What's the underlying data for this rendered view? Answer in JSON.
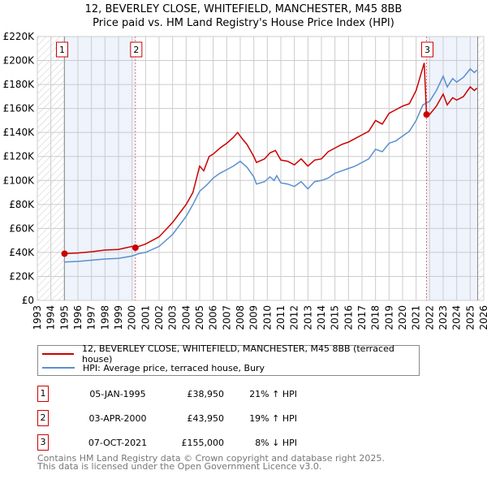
{
  "title": "12, BEVERLEY CLOSE, WHITEFIELD, MANCHESTER, M45 8BB",
  "subtitle": "Price paid vs. HM Land Registry's House Price Index (HPI)",
  "chart_data": {
    "type": "line",
    "xlim": [
      1993,
      2026
    ],
    "ylim": [
      0,
      220000
    ],
    "x_ticks": [
      "1993",
      "1994",
      "1995",
      "1996",
      "1997",
      "1998",
      "1999",
      "2000",
      "2001",
      "2002",
      "2003",
      "2004",
      "2005",
      "2006",
      "2007",
      "2008",
      "2009",
      "2010",
      "2011",
      "2012",
      "2013",
      "2014",
      "2015",
      "2016",
      "2017",
      "2018",
      "2019",
      "2020",
      "2021",
      "2022",
      "2023",
      "2024",
      "2025",
      "2026"
    ],
    "y_ticks": [
      {
        "v": 0,
        "l": "£0"
      },
      {
        "v": 20000,
        "l": "£20K"
      },
      {
        "v": 40000,
        "l": "£40K"
      },
      {
        "v": 60000,
        "l": "£60K"
      },
      {
        "v": 80000,
        "l": "£80K"
      },
      {
        "v": 100000,
        "l": "£100K"
      },
      {
        "v": 120000,
        "l": "£120K"
      },
      {
        "v": 140000,
        "l": "£140K"
      },
      {
        "v": 160000,
        "l": "£160K"
      },
      {
        "v": 180000,
        "l": "£180K"
      },
      {
        "v": 200000,
        "l": "£200K"
      },
      {
        "v": 220000,
        "l": "£220K"
      }
    ],
    "grid": true,
    "series": [
      {
        "name": "12, BEVERLEY CLOSE, WHITEFIELD, MANCHESTER, M45 8BB (terraced house)",
        "color": "#cc0000",
        "x": [
          1995,
          1996,
          1997,
          1998,
          1999,
          2000,
          2000.25,
          2001,
          2002,
          2003,
          2004,
          2004.5,
          2005,
          2005.3,
          2005.7,
          2006,
          2006.5,
          2007,
          2007.5,
          2007.8,
          2008.2,
          2008.5,
          2009,
          2009.2,
          2009.8,
          2010.2,
          2010.6,
          2011,
          2011.5,
          2012,
          2012.5,
          2013,
          2013.5,
          2014,
          2014.5,
          2015,
          2015.5,
          2016,
          2016.5,
          2017,
          2017.5,
          2018,
          2018.5,
          2019,
          2019.5,
          2020,
          2020.5,
          2021,
          2021.6,
          2021.77,
          2022,
          2022.5,
          2023,
          2023.3,
          2023.7,
          2024,
          2024.5,
          2025,
          2025.3,
          2025.5
        ],
        "y": [
          39000,
          39500,
          40500,
          42000,
          42500,
          45000,
          44000,
          47000,
          53000,
          65000,
          80000,
          90000,
          112000,
          108000,
          120000,
          122000,
          127000,
          131000,
          136000,
          140000,
          134000,
          130000,
          120000,
          115000,
          118000,
          123000,
          125000,
          117000,
          116000,
          113000,
          118000,
          112000,
          117000,
          118000,
          124000,
          127000,
          130000,
          132000,
          135000,
          138000,
          141000,
          150000,
          147000,
          156000,
          159000,
          162000,
          164000,
          175000,
          198000,
          155000,
          155000,
          162000,
          172000,
          163000,
          169000,
          167000,
          170000,
          178000,
          175000,
          177000
        ]
      },
      {
        "name": "HPI: Average price, terraced house, Bury",
        "color": "#5b8fd0",
        "x": [
          1995,
          1996,
          1997,
          1998,
          1999,
          2000,
          2000.5,
          2001,
          2002,
          2003,
          2004,
          2004.5,
          2005,
          2005.5,
          2006,
          2006.5,
          2007,
          2007.5,
          2008,
          2008.5,
          2009,
          2009.2,
          2009.8,
          2010.2,
          2010.5,
          2010.7,
          2011,
          2011.5,
          2012,
          2012.5,
          2013,
          2013.5,
          2014,
          2014.5,
          2015,
          2015.5,
          2016,
          2016.5,
          2017,
          2017.5,
          2018,
          2018.5,
          2019,
          2019.5,
          2020,
          2020.5,
          2021,
          2021.5,
          2022,
          2022.5,
          2023,
          2023.3,
          2023.7,
          2024,
          2024.5,
          2025,
          2025.3,
          2025.5
        ],
        "y": [
          32000,
          32500,
          33500,
          34500,
          35000,
          37000,
          39000,
          40000,
          45000,
          55000,
          70000,
          80000,
          91000,
          96000,
          102000,
          106000,
          109000,
          112000,
          116000,
          111000,
          103000,
          97000,
          99000,
          103000,
          100000,
          104000,
          98000,
          97000,
          95000,
          99000,
          93000,
          99000,
          100000,
          102000,
          106000,
          108000,
          110000,
          112000,
          115000,
          118000,
          126000,
          124000,
          131000,
          133000,
          137000,
          141000,
          150000,
          163000,
          166000,
          175000,
          187000,
          178000,
          185000,
          182000,
          186000,
          193000,
          190000,
          192000
        ]
      }
    ],
    "sales": [
      {
        "label": "1",
        "x": 1995.01,
        "y": 38950,
        "date": "05-JAN-1995",
        "price": "£38,950",
        "hpi": "21% ↑ HPI"
      },
      {
        "label": "2",
        "x": 2000.25,
        "y": 43950,
        "date": "03-APR-2000",
        "price": "£43,950",
        "hpi": "19% ↑ HPI"
      },
      {
        "label": "3",
        "x": 2021.77,
        "y": 155000,
        "date": "07-OCT-2021",
        "price": "£155,000",
        "hpi": "8% ↓ HPI"
      }
    ],
    "legend": "below"
  },
  "footer": [
    "Contains HM Land Registry data © Crown copyright and database right 2025.",
    "This data is licensed under the Open Government Licence v3.0."
  ]
}
